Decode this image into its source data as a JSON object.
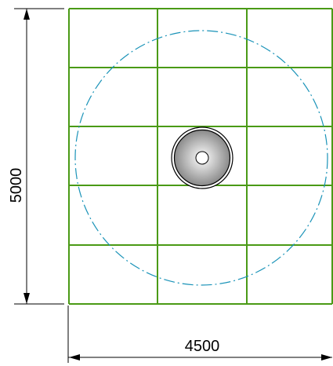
{
  "drawing": {
    "dimensions": {
      "height_label": "5000",
      "width_label": "4500"
    },
    "grid": {
      "columns": 3,
      "rows": 5
    },
    "colors": {
      "grid": "#4a9a16",
      "clearance_circle": "#1a93b8",
      "dimension": "#000000",
      "fixture_fill_center": "#ffffff",
      "fixture_fill_edge": "#8a8a8a"
    },
    "fixture": {
      "name": "round-fixture-icon"
    }
  }
}
